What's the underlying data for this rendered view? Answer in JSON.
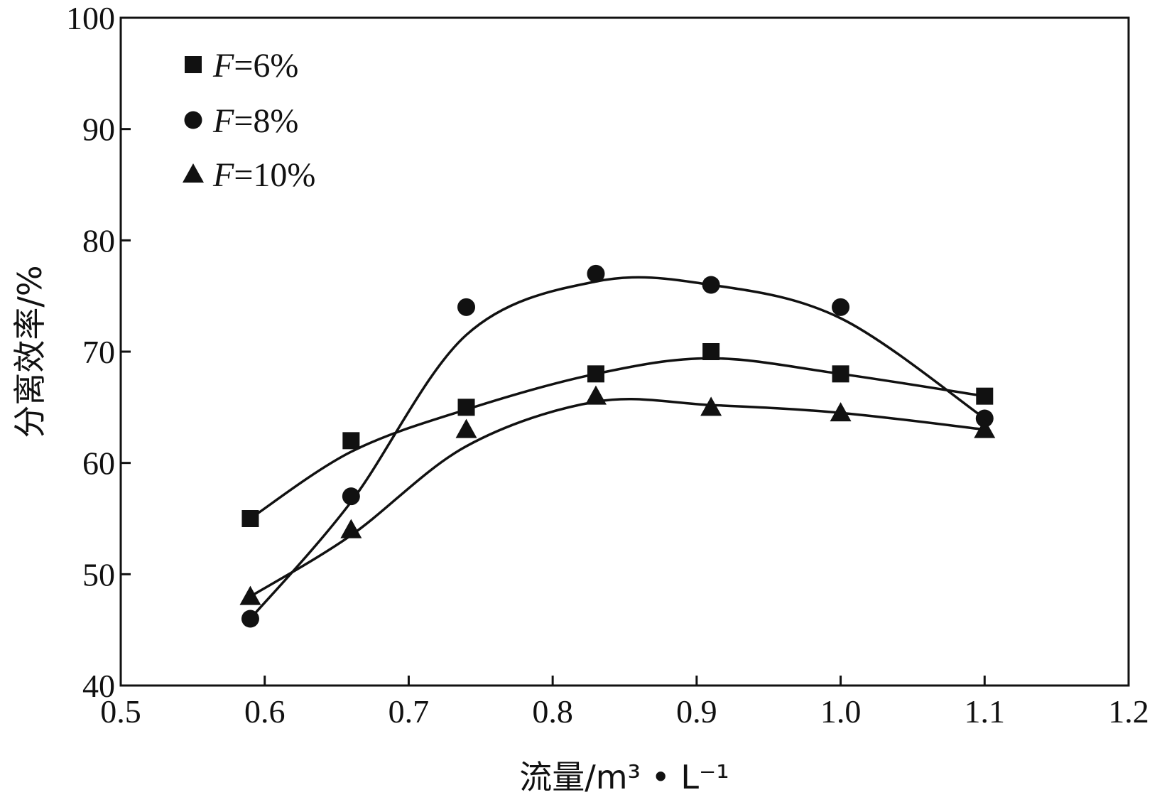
{
  "chart_data": {
    "type": "scatter",
    "title": "",
    "xlabel": "流量/m³ • L⁻¹",
    "ylabel": "分离效率/%",
    "xlim": [
      0.5,
      1.2
    ],
    "ylim": [
      40,
      100
    ],
    "xticks": [
      "0.5",
      "0.6",
      "0.7",
      "0.8",
      "0.9",
      "1.0",
      "1.1",
      "1.2"
    ],
    "yticks": [
      "40",
      "50",
      "60",
      "70",
      "80",
      "90",
      "100"
    ],
    "grid": false,
    "legend_position": "top-left",
    "series": [
      {
        "name": "F=6%",
        "label_var": "F",
        "label_rest": "=6%",
        "marker": "square",
        "x": [
          0.59,
          0.66,
          0.74,
          0.83,
          0.91,
          1.0,
          1.1
        ],
        "y": [
          55,
          62,
          65,
          68,
          70,
          68,
          66
        ],
        "fit_curve": [
          [
            0.59,
            55
          ],
          [
            0.66,
            61
          ],
          [
            0.74,
            64.8
          ],
          [
            0.83,
            68
          ],
          [
            0.91,
            69.4
          ],
          [
            1.0,
            68
          ],
          [
            1.1,
            66
          ]
        ]
      },
      {
        "name": "F=8%",
        "label_var": "F",
        "label_rest": "=8%",
        "marker": "circle",
        "x": [
          0.59,
          0.66,
          0.74,
          0.83,
          0.91,
          1.0,
          1.1
        ],
        "y": [
          46,
          57,
          74,
          77,
          76,
          74,
          64
        ],
        "fit_curve": [
          [
            0.59,
            46
          ],
          [
            0.66,
            56.5
          ],
          [
            0.74,
            71.5
          ],
          [
            0.83,
            76.3
          ],
          [
            0.91,
            76
          ],
          [
            1.0,
            73
          ],
          [
            1.1,
            64
          ]
        ]
      },
      {
        "name": "F=10%",
        "label_var": "F",
        "label_rest": "=10%",
        "marker": "triangle",
        "x": [
          0.59,
          0.66,
          0.74,
          0.83,
          0.91,
          1.0,
          1.1
        ],
        "y": [
          48,
          54,
          63,
          66,
          65,
          64.5,
          63
        ],
        "fit_curve": [
          [
            0.59,
            48
          ],
          [
            0.66,
            53.5
          ],
          [
            0.74,
            61.5
          ],
          [
            0.83,
            65.5
          ],
          [
            0.91,
            65.2
          ],
          [
            1.0,
            64.5
          ],
          [
            1.1,
            63
          ]
        ]
      }
    ]
  }
}
